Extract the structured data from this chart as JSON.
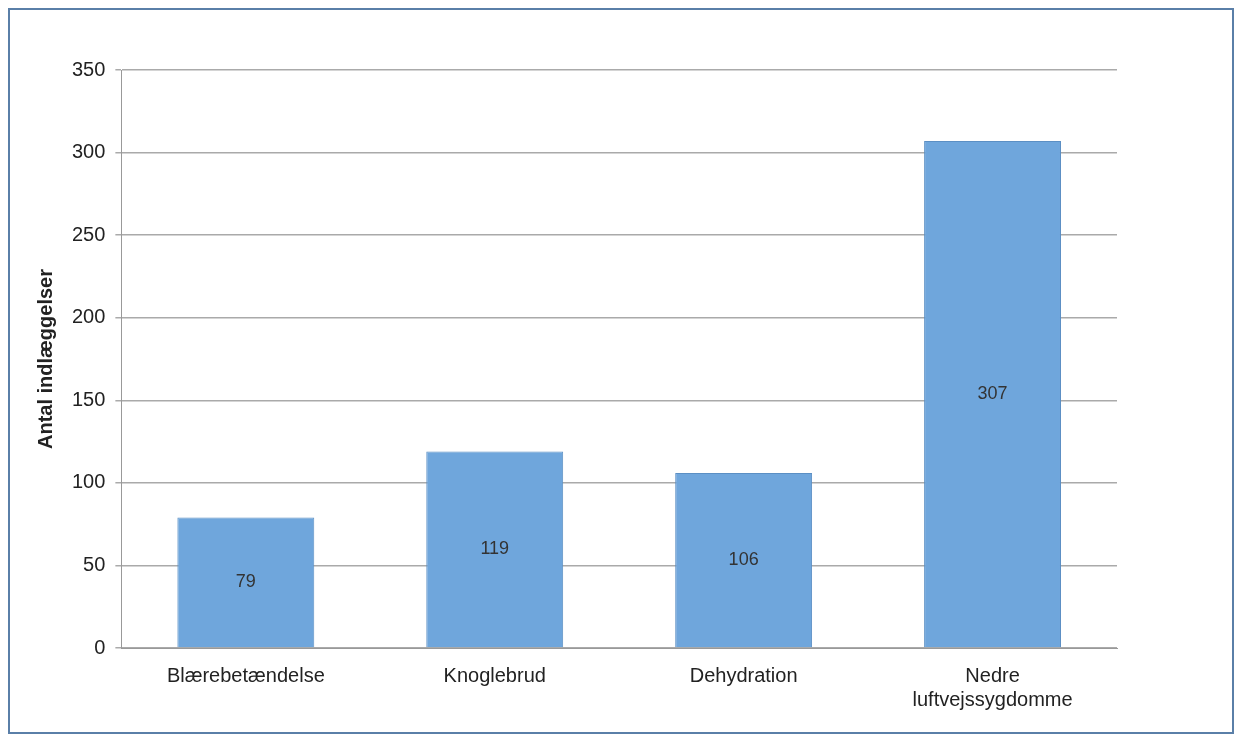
{
  "chart_data": {
    "type": "bar",
    "ylabel": "Antal indlæggelser",
    "categories": [
      "Blærebetændelse",
      "Knoglebrud",
      "Dehydration",
      "Nedre luftvejssygdomme"
    ],
    "values": [
      79,
      119,
      106,
      307
    ],
    "color": "#6fa6dc",
    "ylim": [
      0,
      350
    ],
    "yticks": [
      0,
      50,
      100,
      150,
      200,
      250,
      300,
      350
    ],
    "grid": "y",
    "data_labels": true,
    "legend": false
  }
}
